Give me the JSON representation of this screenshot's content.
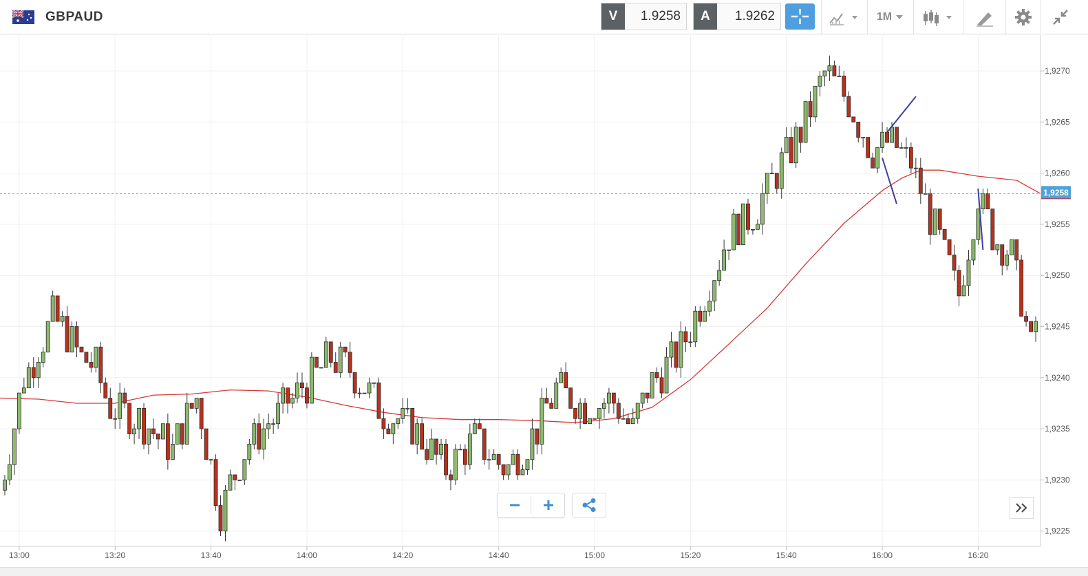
{
  "header": {
    "symbol": "GBPAUD",
    "sell": {
      "label": "V",
      "price": "1.9258"
    },
    "buy": {
      "label": "A",
      "price": "1.9262"
    },
    "timeframe": "1M",
    "tools": [
      "crosshair-icon",
      "indicators-icon",
      "timeframe-dropdown",
      "chart-type-icon",
      "drawing-icon",
      "gear-icon",
      "collapse-icon"
    ]
  },
  "chart_data": {
    "type": "candlestick",
    "instrument": "GBPAUD",
    "y_ticks": [
      "1,9225",
      "1,9230",
      "1,9235",
      "1,9240",
      "1,9245",
      "1,9250",
      "1,9255",
      "1,9260",
      "1,9265",
      "1,9270"
    ],
    "y_tick_values": [
      1.9225,
      1.923,
      1.9235,
      1.924,
      1.9245,
      1.925,
      1.9255,
      1.926,
      1.9265,
      1.927
    ],
    "ylim": [
      1.92235,
      1.92735
    ],
    "x_ticks": [
      "13:00",
      "13:20",
      "13:40",
      "14:00",
      "14:20",
      "14:40",
      "15:00",
      "15:20",
      "15:40",
      "16:00",
      "16:20"
    ],
    "time_range": [
      "12:56",
      "16:33"
    ],
    "current_price": {
      "label": "1,9258",
      "value": 1.9258
    },
    "colors": {
      "up": "#8dba6e",
      "down": "#b8321d",
      "ma": "#d43a3a",
      "drawn_lines": "#3b3fa8",
      "price_tag": "#4da3d8"
    },
    "closes": [
      [
        12.933,
        1.9229
      ],
      [
        13.017,
        1.924
      ],
      [
        13.117,
        1.9246
      ],
      [
        13.217,
        1.9242
      ],
      [
        13.267,
        1.9241
      ],
      [
        13.317,
        1.9237
      ],
      [
        13.417,
        1.9236
      ],
      [
        13.533,
        1.9233
      ],
      [
        13.617,
        1.9238
      ],
      [
        13.7,
        1.9227
      ],
      [
        13.783,
        1.9233
      ],
      [
        13.883,
        1.9236
      ],
      [
        13.983,
        1.9239
      ],
      [
        14.083,
        1.9242
      ],
      [
        14.15,
        1.9241
      ],
      [
        14.25,
        1.9237
      ],
      [
        14.367,
        1.9235
      ],
      [
        14.483,
        1.9231
      ],
      [
        14.583,
        1.9234
      ],
      [
        14.7,
        1.9231
      ],
      [
        14.8,
        1.9235
      ],
      [
        14.867,
        1.9239
      ],
      [
        14.967,
        1.9237
      ],
      [
        15.05,
        1.9238
      ],
      [
        15.133,
        1.9235
      ],
      [
        15.183,
        1.9239
      ],
      [
        15.283,
        1.9242
      ],
      [
        15.367,
        1.9247
      ],
      [
        15.467,
        1.9254
      ],
      [
        15.55,
        1.9256
      ],
      [
        15.633,
        1.926
      ],
      [
        15.717,
        1.9264
      ],
      [
        15.8,
        1.927
      ],
      [
        15.883,
        1.9267
      ],
      [
        15.967,
        1.9262
      ],
      [
        16.033,
        1.9263
      ],
      [
        16.1,
        1.9261
      ],
      [
        16.15,
        1.9257
      ],
      [
        16.217,
        1.9252
      ],
      [
        16.267,
        1.9248
      ],
      [
        16.333,
        1.9258
      ],
      [
        16.383,
        1.9254
      ],
      [
        16.45,
        1.9252
      ],
      [
        16.517,
        1.9243
      ],
      [
        16.55,
        1.9248
      ]
    ],
    "moving_average": [
      [
        12.933,
        1.9238
      ],
      [
        13.067,
        1.92379
      ],
      [
        13.2,
        1.92375
      ],
      [
        13.333,
        1.92375
      ],
      [
        13.467,
        1.92383
      ],
      [
        13.6,
        1.92384
      ],
      [
        13.733,
        1.92388
      ],
      [
        13.867,
        1.92387
      ],
      [
        14.0,
        1.92381
      ],
      [
        14.133,
        1.92373
      ],
      [
        14.267,
        1.92366
      ],
      [
        14.4,
        1.92361
      ],
      [
        14.533,
        1.92359
      ],
      [
        14.667,
        1.92359
      ],
      [
        14.8,
        1.92358
      ],
      [
        14.933,
        1.92356
      ],
      [
        15.067,
        1.9236
      ],
      [
        15.2,
        1.92371
      ],
      [
        15.333,
        1.92398
      ],
      [
        15.467,
        1.92433
      ],
      [
        15.6,
        1.92468
      ],
      [
        15.733,
        1.92511
      ],
      [
        15.867,
        1.92551
      ],
      [
        16.0,
        1.92583
      ],
      [
        16.067,
        1.92595
      ],
      [
        16.133,
        1.92603
      ],
      [
        16.2,
        1.92603
      ],
      [
        16.267,
        1.926
      ],
      [
        16.333,
        1.92597
      ],
      [
        16.467,
        1.92593
      ],
      [
        16.55,
        1.9258
      ]
    ]
  }
}
